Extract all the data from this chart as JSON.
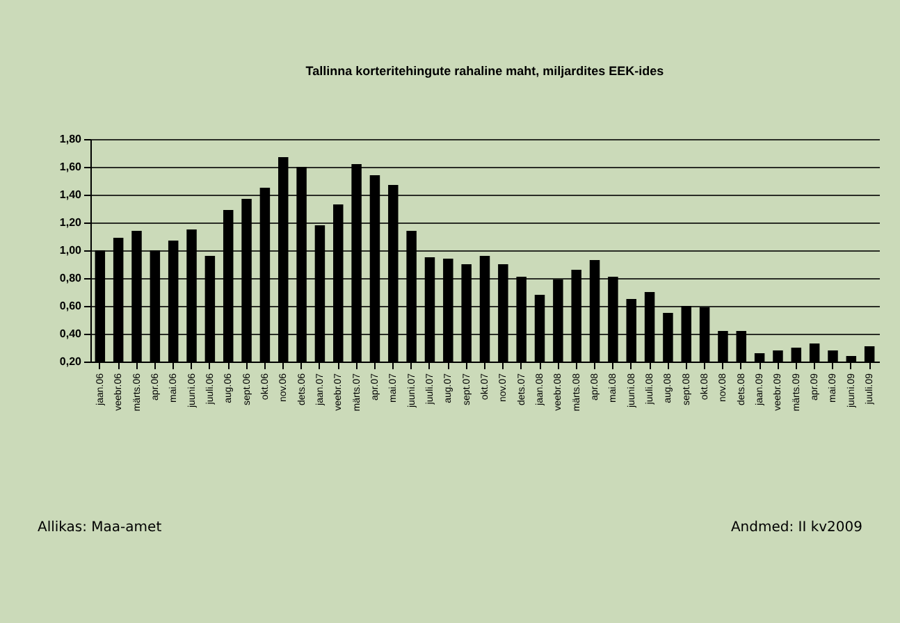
{
  "chart_data": {
    "type": "bar",
    "title": "Tallinna korteritehingute rahaline maht, miljardites EEK-ides",
    "categories": [
      "jaan.06",
      "veebr.06",
      "märts.06",
      "apr.06",
      "mai.06",
      "juuni.06",
      "juuli.06",
      "aug.06",
      "sept.06",
      "okt.06",
      "nov.06",
      "dets.06",
      "jaan.07",
      "veebr.07",
      "märts.07",
      "apr.07",
      "mai.07",
      "juuni.07",
      "juuli.07",
      "aug.07",
      "sept.07",
      "okt.07",
      "nov.07",
      "dets.07",
      "jaan.08",
      "veebr.08",
      "märts.08",
      "apr.08",
      "mai.08",
      "juuni.08",
      "juuli.08",
      "aug.08",
      "sept.08",
      "okt.08",
      "nov.08",
      "dets.08",
      "jaan.09",
      "veebr.09",
      "märts.09",
      "apr.09",
      "mai.09",
      "juuni.09",
      "juuli.09"
    ],
    "values": [
      1.0,
      1.09,
      1.14,
      1.0,
      1.07,
      1.15,
      0.96,
      1.29,
      1.37,
      1.45,
      1.67,
      1.6,
      1.18,
      1.33,
      1.62,
      1.54,
      1.47,
      1.14,
      0.95,
      0.94,
      0.9,
      0.96,
      0.9,
      0.81,
      0.68,
      0.79,
      0.86,
      0.93,
      0.81,
      0.65,
      0.7,
      0.55,
      0.6,
      0.59,
      0.42,
      0.42,
      0.26,
      0.28,
      0.3,
      0.33,
      0.28,
      0.24,
      0.31
    ],
    "color": "#000000",
    "ylim": [
      0.2,
      1.8
    ],
    "yticks": [
      {
        "value": 0.2,
        "label": "0,20"
      },
      {
        "value": 0.4,
        "label": "0,40"
      },
      {
        "value": 0.6,
        "label": "0,60"
      },
      {
        "value": 0.8,
        "label": "0,80"
      },
      {
        "value": 1.0,
        "label": "1,00"
      },
      {
        "value": 1.2,
        "label": "1,20"
      },
      {
        "value": 1.4,
        "label": "1,40"
      },
      {
        "value": 1.6,
        "label": "1,60"
      },
      {
        "value": 1.8,
        "label": "1,80"
      }
    ],
    "grid": "y",
    "annotations": [
      "Allikas: Maa-amet",
      "Andmed: II kv2009"
    ]
  }
}
